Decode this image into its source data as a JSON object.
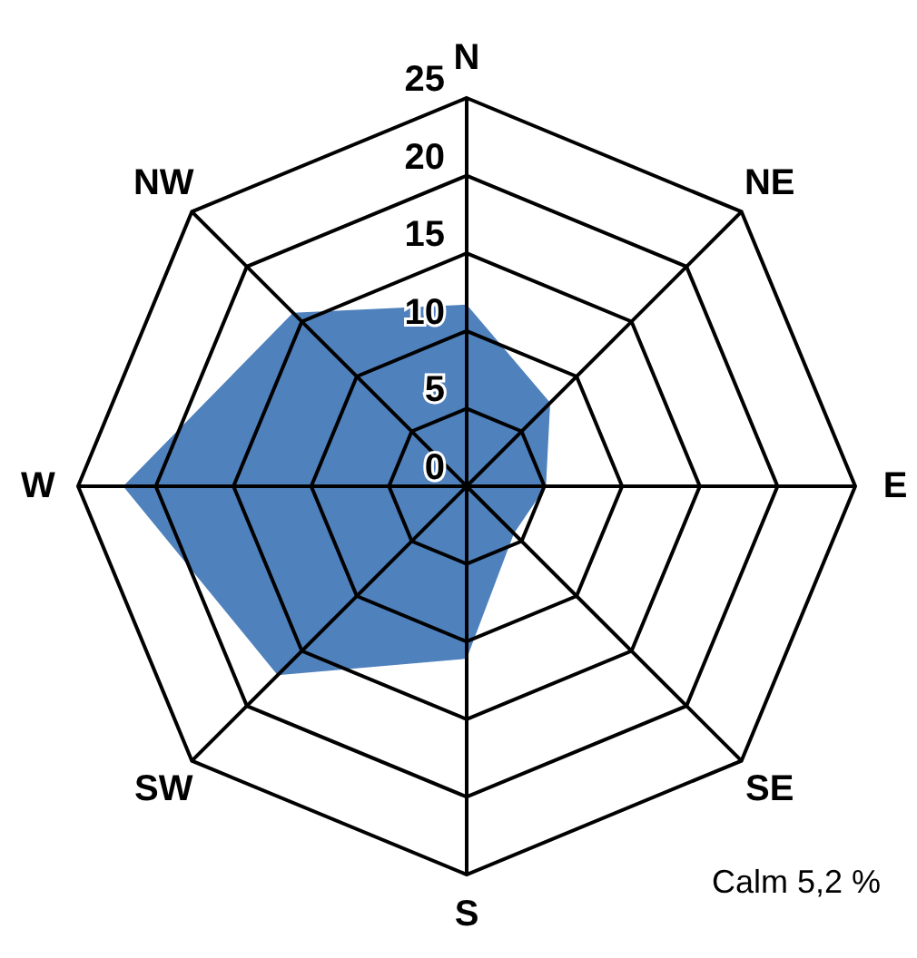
{
  "chart_data": {
    "type": "radar",
    "categories": [
      "N",
      "NE",
      "E",
      "SE",
      "S",
      "SW",
      "W",
      "NW"
    ],
    "series": [
      {
        "color": "#4f81bd",
        "values": [
          11.7,
          7.6,
          5.1,
          4.3,
          11.1,
          17.2,
          22.1,
          15.8
        ]
      }
    ],
    "ylim": [
      0,
      25
    ],
    "yticks": [
      0,
      5,
      10,
      15,
      20,
      25
    ],
    "grid": true,
    "annotations": [
      "Calm 5,2 %"
    ]
  }
}
